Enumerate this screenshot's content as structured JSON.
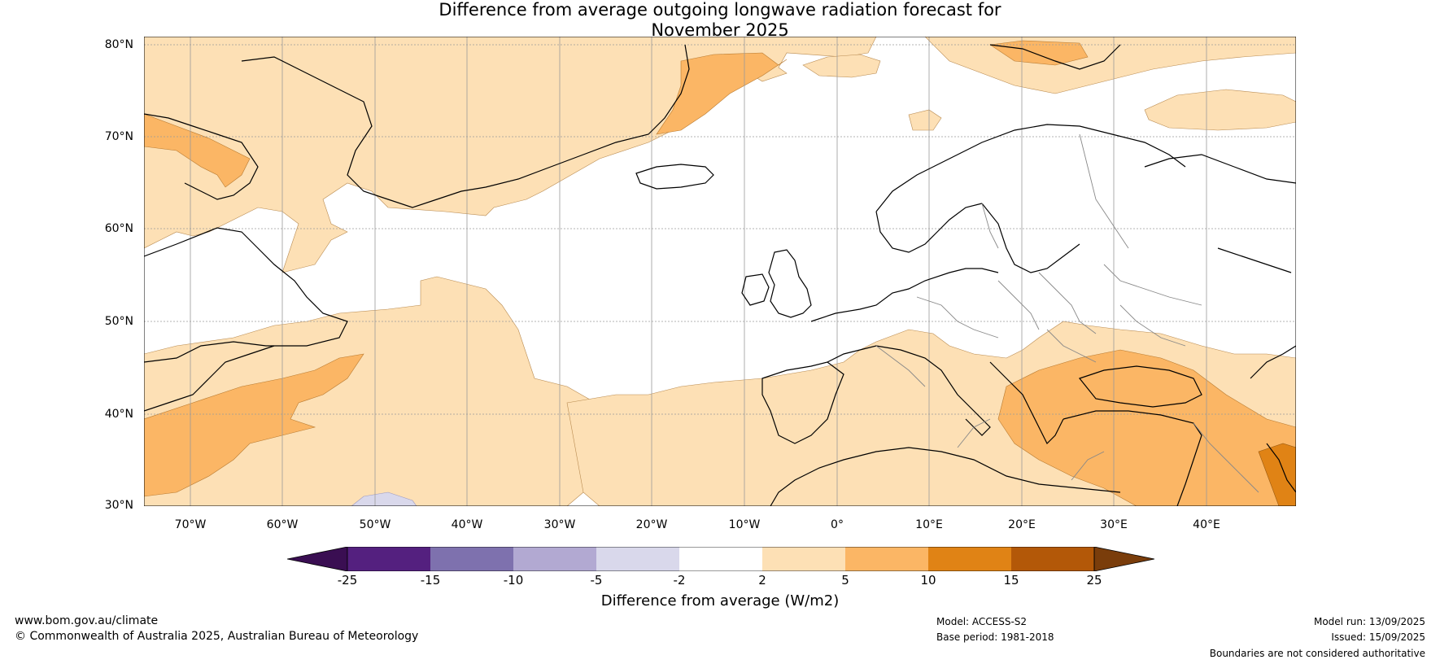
{
  "title": {
    "line1": "Difference from average outgoing longwave radiation forecast for",
    "line2": "November 2025"
  },
  "map": {
    "lat_labels": [
      "80°N",
      "70°N",
      "60°N",
      "50°N",
      "40°N",
      "30°N"
    ],
    "lon_labels": [
      "70°W",
      "60°W",
      "50°W",
      "40°W",
      "30°W",
      "20°W",
      "10°W",
      "0°",
      "10°E",
      "20°E",
      "30°E",
      "40°E"
    ]
  },
  "colorbar": {
    "title": "Difference from average (W/m2)",
    "ticks": [
      "-25",
      "-15",
      "-10",
      "-5",
      "-2",
      "2",
      "5",
      "10",
      "15",
      "25"
    ],
    "colors": {
      "lt_neg25": "#3a0e52",
      "neg25_neg15": "#54207f",
      "neg15_neg10": "#7e71ae",
      "neg10_neg5": "#b2a9d2",
      "neg5_neg2": "#d9d8eb",
      "neg2_2": "#ffffff",
      "2_5": "#fde0b5",
      "5_10": "#fbb665",
      "10_15": "#e08315",
      "15_25": "#b35808",
      "gt_25": "#7a3d0b"
    }
  },
  "footer": {
    "website": "www.bom.gov.au/climate",
    "copyright": "© Commonwealth of Australia 2025, Australian Bureau of Meteorology",
    "model": "Model: ACCESS-S2",
    "base_period": "Base period: 1981-2018",
    "model_run": "Model run: 13/09/2025",
    "issued": "Issued: 15/09/2025",
    "disclaimer": "Boundaries are not considered authoritative"
  }
}
